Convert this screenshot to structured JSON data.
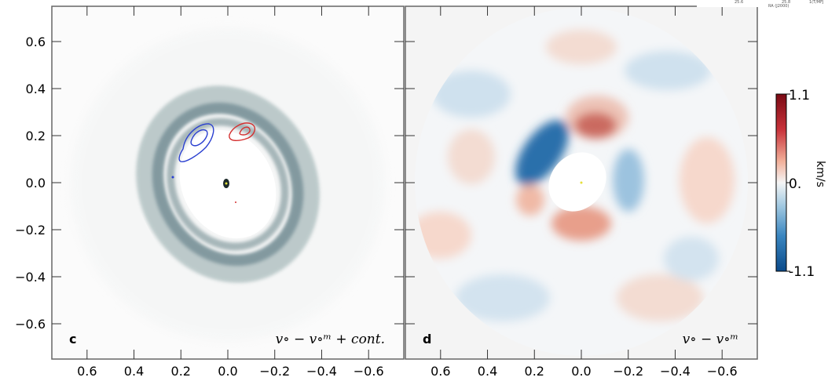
{
  "chart_data": [
    {
      "type": "heatmap",
      "panel_label": "c",
      "annotation": "v∘ − v∘ᵐ + cont.",
      "xlim": [
        0.75,
        -0.75
      ],
      "ylim": [
        -0.75,
        0.75
      ],
      "xticks": [
        0.6,
        0.4,
        0.2,
        0.0,
        -0.2,
        -0.4,
        -0.6
      ],
      "yticks": [
        0.6,
        0.4,
        0.2,
        0.0,
        -0.2,
        -0.4,
        -0.6
      ],
      "xticklabels": [
        "0.6",
        "0.4",
        "0.2",
        "0.0",
        "−0.2",
        "−0.4",
        "−0.6"
      ],
      "yticklabels": [
        "0.6",
        "0.4",
        "0.2",
        "0.0",
        "−0.2",
        "−0.4",
        "−0.6"
      ],
      "colors": {
        "ring": "#6f8a92",
        "ring_light": "#aebfc0",
        "blue_contour": "#2a3fd0",
        "red_contour": "#d43030"
      }
    },
    {
      "type": "heatmap",
      "panel_label": "d",
      "annotation": "v∘ − v∘ᵐ",
      "xlim": [
        0.75,
        -0.75
      ],
      "ylim": [
        -0.75,
        0.75
      ],
      "xticks": [
        0.6,
        0.4,
        0.2,
        0.0,
        -0.2,
        -0.4,
        -0.6
      ],
      "xticklabels": [
        "0.6",
        "0.4",
        "0.2",
        "0.0",
        "−0.2",
        "−0.4",
        "−0.6"
      ],
      "colorbar": {
        "min": -1.1,
        "max": 1.1,
        "tick_labels": [
          "1.1",
          "0.",
          "-1.1"
        ],
        "label": "km/s",
        "colors": {
          "max": "#7a0a14",
          "mid": "#f5f5f5",
          "min": "#0a4a8a"
        }
      }
    }
  ],
  "corner_snippet": {
    "labels": [
      "25.6",
      "25.8",
      "RA (J2000)",
      "1(T/MFJ"
    ]
  }
}
